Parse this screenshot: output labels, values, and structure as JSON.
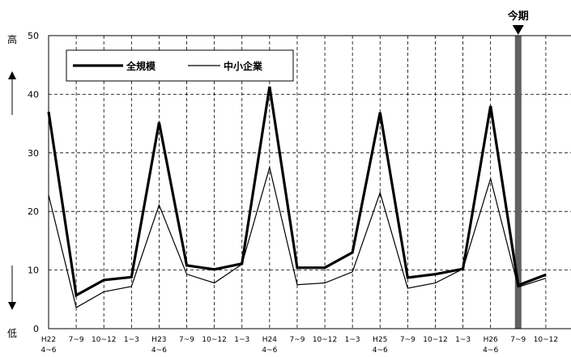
{
  "chart_data": {
    "type": "line",
    "categories": [
      [
        "H22",
        "4~6"
      ],
      [
        "7~9"
      ],
      [
        "10~12"
      ],
      [
        "1~3"
      ],
      [
        "H23",
        "4~6"
      ],
      [
        "7~9"
      ],
      [
        "10~12"
      ],
      [
        "1~3"
      ],
      [
        "H24",
        "4~6"
      ],
      [
        "7~9"
      ],
      [
        "10~12"
      ],
      [
        "1~3"
      ],
      [
        "H25",
        "4~6"
      ],
      [
        "7~9"
      ],
      [
        "10~12"
      ],
      [
        "1~3"
      ],
      [
        "H26",
        "4~6"
      ],
      [
        "7~9"
      ],
      [
        "10~12"
      ]
    ],
    "series": [
      {
        "name": "全規模",
        "values": [
          37.0,
          5.7,
          8.3,
          8.8,
          35.2,
          10.8,
          10.1,
          11.1,
          41.3,
          10.4,
          10.4,
          13.0,
          36.9,
          8.7,
          9.3,
          10.2,
          38.0,
          7.4,
          9.2
        ],
        "color": "#000000",
        "width": "thick"
      },
      {
        "name": "中小企業",
        "values": [
          22.8,
          3.6,
          6.3,
          7.2,
          21.1,
          9.3,
          7.8,
          11.0,
          27.5,
          7.5,
          7.8,
          9.7,
          23.2,
          6.9,
          7.8,
          10.2,
          25.6,
          7.1,
          8.6
        ],
        "color": "#000000",
        "width": "thin"
      }
    ],
    "ylim": [
      0,
      50
    ],
    "yticks": [
      0,
      10,
      20,
      30,
      40,
      50
    ],
    "grid": {
      "horizontal": "dashed",
      "vertical": "dashed"
    },
    "legend_position": "top-left",
    "highlight": {
      "category_index": 17,
      "label": "今期",
      "color": "#606060"
    },
    "side_labels": {
      "top": "高",
      "bottom": "低"
    }
  }
}
